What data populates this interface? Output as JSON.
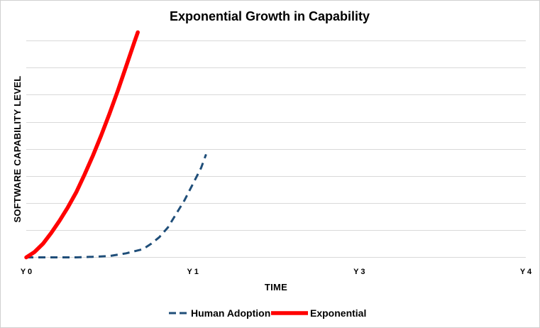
{
  "chart_data": {
    "type": "line",
    "title": "Exponential Growth in Capability",
    "xlabel": "TIME",
    "ylabel": "SOFTWARE CAPABILITY LEVEL",
    "x_tick_positions": [
      0,
      1,
      2,
      3
    ],
    "x_tick_labels": [
      "Y 0",
      "Y 1",
      "Y 3",
      "Y 4"
    ],
    "xlim": [
      0,
      3
    ],
    "ylim": [
      0,
      8
    ],
    "y_gridlines": [
      1,
      2,
      3,
      4,
      5,
      6,
      7,
      8
    ],
    "legend_position": "bottom",
    "series": [
      {
        "name": "Human Adoption",
        "style": "dashed",
        "color": "#1F4E79",
        "points": [
          [
            0.0,
            0.0
          ],
          [
            0.1,
            0.0
          ],
          [
            0.2,
            0.0
          ],
          [
            0.3,
            0.0
          ],
          [
            0.4,
            0.02
          ],
          [
            0.5,
            0.05
          ],
          [
            0.6,
            0.15
          ],
          [
            0.7,
            0.3
          ],
          [
            0.75,
            0.5
          ],
          [
            0.8,
            0.75
          ],
          [
            0.85,
            1.1
          ],
          [
            0.9,
            1.6
          ],
          [
            0.95,
            2.1
          ],
          [
            1.0,
            2.7
          ],
          [
            1.05,
            3.3
          ],
          [
            1.08,
            3.8
          ]
        ]
      },
      {
        "name": "Exponential",
        "style": "solid",
        "color": "#FF0000",
        "points": [
          [
            0.0,
            0.0
          ],
          [
            0.05,
            0.2
          ],
          [
            0.1,
            0.5
          ],
          [
            0.15,
            0.9
          ],
          [
            0.2,
            1.35
          ],
          [
            0.25,
            1.85
          ],
          [
            0.3,
            2.4
          ],
          [
            0.35,
            3.05
          ],
          [
            0.4,
            3.75
          ],
          [
            0.45,
            4.5
          ],
          [
            0.5,
            5.3
          ],
          [
            0.55,
            6.15
          ],
          [
            0.6,
            7.05
          ],
          [
            0.65,
            7.95
          ],
          [
            0.67,
            8.3
          ]
        ]
      }
    ]
  }
}
